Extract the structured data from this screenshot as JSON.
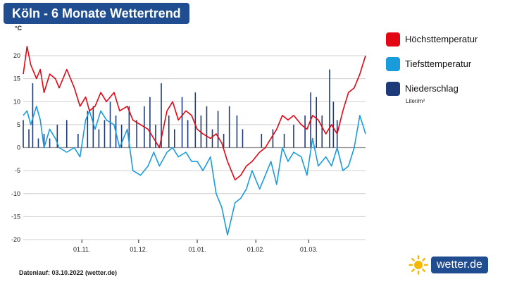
{
  "chart_data": {
    "type": "line",
    "title": "Köln - 6 Monate Wettertrend",
    "ylabel": "°C",
    "ylim": [
      -20,
      20
    ],
    "yticks": [
      20,
      15,
      10,
      5,
      0,
      -5,
      -10,
      -15,
      -20
    ],
    "xlim": [
      "2022-10-01",
      "2023-03-31"
    ],
    "xticks": [
      "01.11.",
      "01.12.",
      "01.01.",
      "01.02.",
      "01.03."
    ],
    "grid": true,
    "legend_position": "right",
    "series": [
      {
        "name": "Höchsttemperatur",
        "color": "#e30613",
        "type": "line",
        "points": [
          [
            "2022-10-01",
            16
          ],
          [
            "2022-10-03",
            22
          ],
          [
            "2022-10-05",
            18
          ],
          [
            "2022-10-08",
            15
          ],
          [
            "2022-10-10",
            17
          ],
          [
            "2022-10-12",
            12
          ],
          [
            "2022-10-15",
            16
          ],
          [
            "2022-10-18",
            15
          ],
          [
            "2022-10-20",
            13
          ],
          [
            "2022-10-24",
            17
          ],
          [
            "2022-10-28",
            13
          ],
          [
            "2022-10-31",
            9
          ],
          [
            "2022-11-03",
            11
          ],
          [
            "2022-11-05",
            8
          ],
          [
            "2022-11-08",
            9
          ],
          [
            "2022-11-11",
            12
          ],
          [
            "2022-11-14",
            10
          ],
          [
            "2022-11-18",
            12
          ],
          [
            "2022-11-21",
            8
          ],
          [
            "2022-11-25",
            9
          ],
          [
            "2022-11-28",
            6
          ],
          [
            "2022-12-02",
            5
          ],
          [
            "2022-12-06",
            4
          ],
          [
            "2022-12-09",
            2
          ],
          [
            "2022-12-12",
            0
          ],
          [
            "2022-12-16",
            8
          ],
          [
            "2022-12-19",
            10
          ],
          [
            "2022-12-22",
            6
          ],
          [
            "2022-12-26",
            8
          ],
          [
            "2022-12-29",
            7
          ],
          [
            "2023-01-01",
            4
          ],
          [
            "2023-01-04",
            3
          ],
          [
            "2023-01-08",
            2
          ],
          [
            "2023-01-11",
            3
          ],
          [
            "2023-01-14",
            1
          ],
          [
            "2023-01-17",
            -3
          ],
          [
            "2023-01-21",
            -7
          ],
          [
            "2023-01-24",
            -6
          ],
          [
            "2023-01-27",
            -4
          ],
          [
            "2023-01-30",
            -3
          ],
          [
            "2023-02-03",
            -1
          ],
          [
            "2023-02-06",
            0
          ],
          [
            "2023-02-09",
            2
          ],
          [
            "2023-02-12",
            4
          ],
          [
            "2023-02-15",
            7
          ],
          [
            "2023-02-18",
            6
          ],
          [
            "2023-02-21",
            7
          ],
          [
            "2023-02-25",
            5
          ],
          [
            "2023-02-28",
            4
          ],
          [
            "2023-03-03",
            7
          ],
          [
            "2023-03-06",
            6
          ],
          [
            "2023-03-10",
            3
          ],
          [
            "2023-03-13",
            5
          ],
          [
            "2023-03-16",
            3
          ],
          [
            "2023-03-19",
            8
          ],
          [
            "2023-03-22",
            12
          ],
          [
            "2023-03-25",
            13
          ],
          [
            "2023-03-28",
            16
          ],
          [
            "2023-03-31",
            20
          ]
        ]
      },
      {
        "name": "Tiefsttemperatur",
        "color": "#1a9bdc",
        "type": "line",
        "points": [
          [
            "2022-10-01",
            7
          ],
          [
            "2022-10-03",
            8
          ],
          [
            "2022-10-05",
            5
          ],
          [
            "2022-10-08",
            9
          ],
          [
            "2022-10-10",
            6
          ],
          [
            "2022-10-12",
            0
          ],
          [
            "2022-10-15",
            4
          ],
          [
            "2022-10-18",
            2
          ],
          [
            "2022-10-20",
            0
          ],
          [
            "2022-10-24",
            -1
          ],
          [
            "2022-10-28",
            0
          ],
          [
            "2022-10-31",
            -2
          ],
          [
            "2022-11-03",
            6
          ],
          [
            "2022-11-05",
            8
          ],
          [
            "2022-11-08",
            4
          ],
          [
            "2022-11-11",
            8
          ],
          [
            "2022-11-14",
            6
          ],
          [
            "2022-11-18",
            5
          ],
          [
            "2022-11-21",
            0
          ],
          [
            "2022-11-25",
            4
          ],
          [
            "2022-11-28",
            -5
          ],
          [
            "2022-12-02",
            -6
          ],
          [
            "2022-12-06",
            -4
          ],
          [
            "2022-12-09",
            -1
          ],
          [
            "2022-12-12",
            -4
          ],
          [
            "2022-12-16",
            -1
          ],
          [
            "2022-12-19",
            0
          ],
          [
            "2022-12-22",
            -2
          ],
          [
            "2022-12-26",
            -1
          ],
          [
            "2022-12-29",
            -3
          ],
          [
            "2023-01-01",
            -3
          ],
          [
            "2023-01-04",
            -5
          ],
          [
            "2023-01-08",
            -2
          ],
          [
            "2023-01-11",
            -10
          ],
          [
            "2023-01-14",
            -13
          ],
          [
            "2023-01-17",
            -19
          ],
          [
            "2023-01-21",
            -12
          ],
          [
            "2023-01-24",
            -11
          ],
          [
            "2023-01-27",
            -9
          ],
          [
            "2023-01-30",
            -5
          ],
          [
            "2023-02-03",
            -9
          ],
          [
            "2023-02-06",
            -6
          ],
          [
            "2023-02-09",
            -3
          ],
          [
            "2023-02-12",
            -8
          ],
          [
            "2023-02-15",
            0
          ],
          [
            "2023-02-18",
            -3
          ],
          [
            "2023-02-21",
            -1
          ],
          [
            "2023-02-25",
            -2
          ],
          [
            "2023-02-28",
            -6
          ],
          [
            "2023-03-03",
            2
          ],
          [
            "2023-03-06",
            -4
          ],
          [
            "2023-03-10",
            -2
          ],
          [
            "2023-03-13",
            -4
          ],
          [
            "2023-03-16",
            0
          ],
          [
            "2023-03-19",
            -5
          ],
          [
            "2023-03-22",
            -4
          ],
          [
            "2023-03-25",
            0
          ],
          [
            "2023-03-28",
            7
          ],
          [
            "2023-03-31",
            3
          ]
        ]
      },
      {
        "name": "Niederschlag",
        "unit": "Liter/m²",
        "color": "#1f3a78",
        "type": "bar",
        "points": [
          [
            "2022-10-01",
            6
          ],
          [
            "2022-10-04",
            4
          ],
          [
            "2022-10-06",
            14
          ],
          [
            "2022-10-09",
            2
          ],
          [
            "2022-10-12",
            3
          ],
          [
            "2022-10-15",
            2
          ],
          [
            "2022-10-19",
            5
          ],
          [
            "2022-10-24",
            6
          ],
          [
            "2022-10-30",
            3
          ],
          [
            "2022-11-04",
            8
          ],
          [
            "2022-11-07",
            9
          ],
          [
            "2022-11-10",
            4
          ],
          [
            "2022-11-13",
            6
          ],
          [
            "2022-11-16",
            10
          ],
          [
            "2022-11-19",
            7
          ],
          [
            "2022-11-22",
            5
          ],
          [
            "2022-11-26",
            9
          ],
          [
            "2022-11-30",
            6
          ],
          [
            "2022-12-04",
            9
          ],
          [
            "2022-12-07",
            11
          ],
          [
            "2022-12-10",
            5
          ],
          [
            "2022-12-13",
            14
          ],
          [
            "2022-12-17",
            7
          ],
          [
            "2022-12-20",
            4
          ],
          [
            "2022-12-24",
            11
          ],
          [
            "2022-12-27",
            6
          ],
          [
            "2022-12-31",
            12
          ],
          [
            "2023-01-03",
            7
          ],
          [
            "2023-01-06",
            9
          ],
          [
            "2023-01-09",
            4
          ],
          [
            "2023-01-12",
            8
          ],
          [
            "2023-01-15",
            3
          ],
          [
            "2023-01-18",
            9
          ],
          [
            "2023-01-22",
            7
          ],
          [
            "2023-01-25",
            4
          ],
          [
            "2023-02-04",
            3
          ],
          [
            "2023-02-10",
            4
          ],
          [
            "2023-02-16",
            3
          ],
          [
            "2023-02-21",
            5
          ],
          [
            "2023-02-27",
            7
          ],
          [
            "2023-03-02",
            12
          ],
          [
            "2023-03-05",
            11
          ],
          [
            "2023-03-08",
            7
          ],
          [
            "2023-03-12",
            17
          ],
          [
            "2023-03-14",
            10
          ],
          [
            "2023-03-16",
            6
          ]
        ]
      }
    ],
    "footnote": "Datenlauf: 03.10.2022 (wetter.de)"
  },
  "logo_text": "wetter.de"
}
